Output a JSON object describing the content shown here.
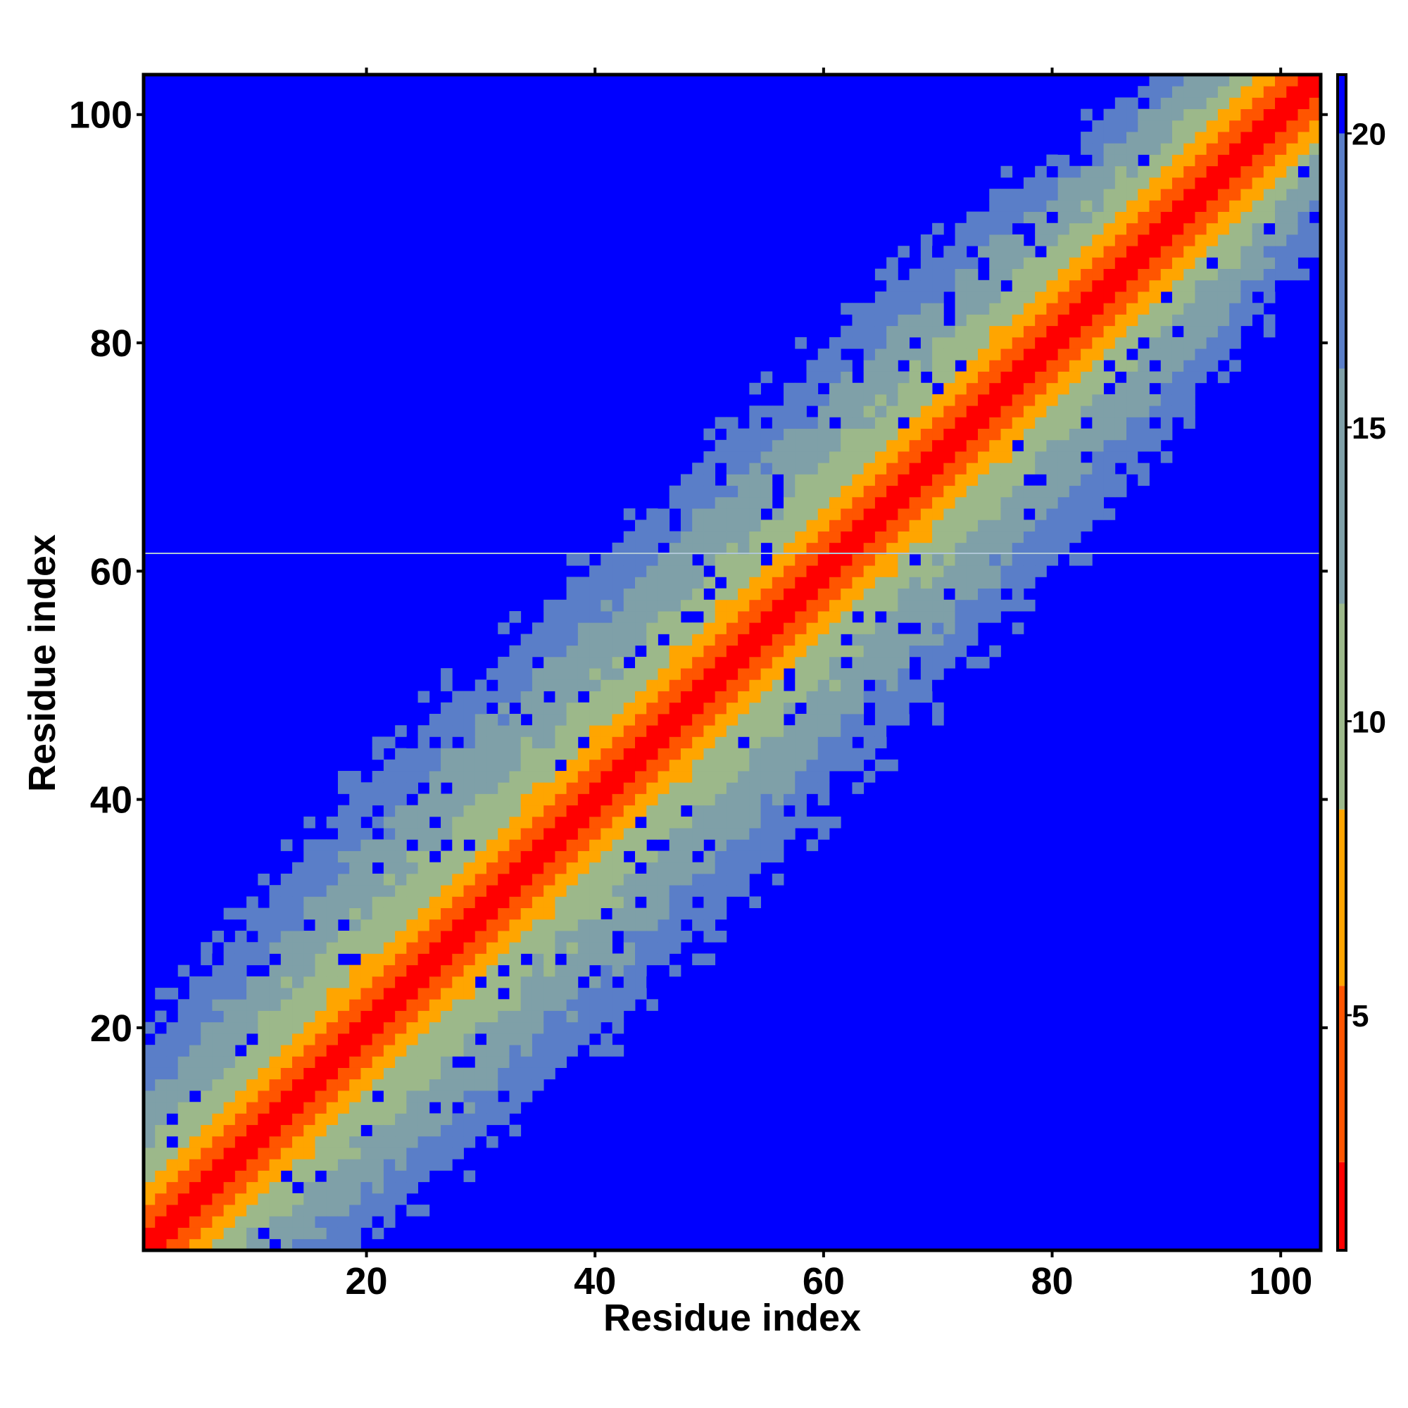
{
  "chart_data": {
    "type": "heatmap",
    "title": "",
    "xlabel": "Residue index",
    "ylabel": "Residue index",
    "n": 103,
    "x_range": [
      1,
      103
    ],
    "y_range": [
      1,
      103
    ],
    "x_ticks": [
      20,
      40,
      60,
      80,
      100
    ],
    "y_ticks": [
      20,
      40,
      60,
      80,
      100
    ],
    "value_range": [
      1,
      21
    ],
    "colorbar_ticks": [
      5,
      10,
      15,
      20
    ],
    "colormap": [
      {
        "max": 2.5,
        "color": "#ff0000"
      },
      {
        "max": 5.5,
        "color": "#ff5500"
      },
      {
        "max": 8.5,
        "color": "#ffa500"
      },
      {
        "max": 12.0,
        "color": "#9cb88a"
      },
      {
        "max": 16.0,
        "color": "#7fa0a8"
      },
      {
        "max": 20.0,
        "color": "#5a7ec8"
      },
      {
        "max": 21.0,
        "color": "#0000ff"
      }
    ],
    "diagonal_profile": {
      "description_points": [
        [
          1,
          14
        ],
        [
          20,
          22
        ],
        [
          40,
          21
        ],
        [
          60,
          20
        ],
        [
          80,
          19
        ],
        [
          103,
          12
        ]
      ]
    },
    "background_value": 21,
    "grid": false,
    "colorbar": "right"
  }
}
